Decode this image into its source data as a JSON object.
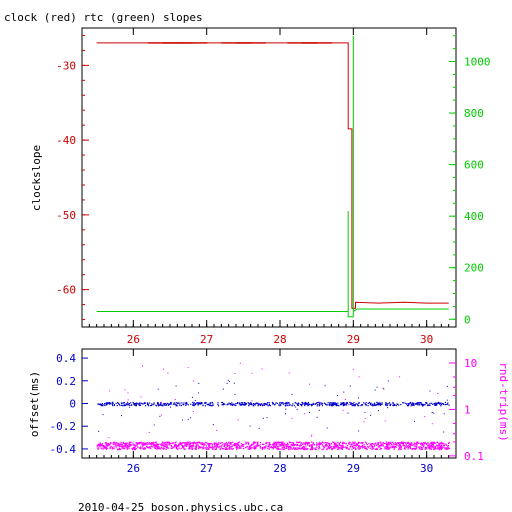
{
  "title": "clock (red) rtc (green) slopes",
  "footer": "2010-04-25 boson.physics.ubc.ca",
  "colors": {
    "clock": "#cc0000",
    "rtc": "#00cc00",
    "offset": "#0000cc",
    "rndtrip": "#ff00ff",
    "axis": "#000000"
  },
  "chart_data": [
    {
      "type": "line",
      "ylabel": "clockslope",
      "y2label": "",
      "xlim": [
        25.3,
        30.4
      ],
      "ylim": [
        -65,
        -25
      ],
      "y2lim": [
        -30,
        1130
      ],
      "xticks": [
        "26",
        "27",
        "28",
        "29",
        "30"
      ],
      "yticks": [
        "-30",
        "-40",
        "-50",
        "-60"
      ],
      "y2ticks": [
        "0",
        "200",
        "400",
        "600",
        "800",
        "1000"
      ],
      "series": [
        {
          "name": "clock",
          "axis": "left",
          "x": [
            25.5,
            28.93,
            28.93,
            28.98,
            28.98,
            29.03,
            29.03,
            29.35,
            29.7,
            30.0,
            30.3
          ],
          "y": [
            -27.0,
            -27.0,
            -38.5,
            -38.5,
            -62.5,
            -62.5,
            -61.7,
            -61.8,
            -61.7,
            -61.8,
            -61.8
          ]
        },
        {
          "name": "rtc",
          "axis": "right",
          "x": [
            25.5,
            28.93,
            28.93,
            28.93,
            28.98,
            29.0,
            29.0,
            29.0,
            29.05,
            30.3
          ],
          "y": [
            30,
            30,
            420,
            10,
            10,
            10,
            1100,
            30,
            40,
            40
          ]
        }
      ]
    },
    {
      "type": "scatter",
      "ylabel": "offset(ms)",
      "y2label": "rnd-trip(ms)",
      "xlim": [
        25.3,
        30.4
      ],
      "ylim": [
        -0.48,
        0.48
      ],
      "y2lim": [
        0.09,
        20
      ],
      "y2scale": "log",
      "xticks": [
        "26",
        "27",
        "28",
        "29",
        "30"
      ],
      "yticks": [
        "0.4",
        "0.2",
        "0",
        "-0.2",
        "-0.4"
      ],
      "y2ticks": [
        "10",
        "1",
        "0.1"
      ],
      "series": [
        {
          "name": "offset",
          "axis": "left",
          "x_range": [
            25.5,
            30.3
          ],
          "baseline": 0.0
        },
        {
          "name": "rnd-trip",
          "axis": "right",
          "x_range": [
            25.5,
            30.3
          ],
          "baseline": 0.17
        }
      ]
    }
  ]
}
